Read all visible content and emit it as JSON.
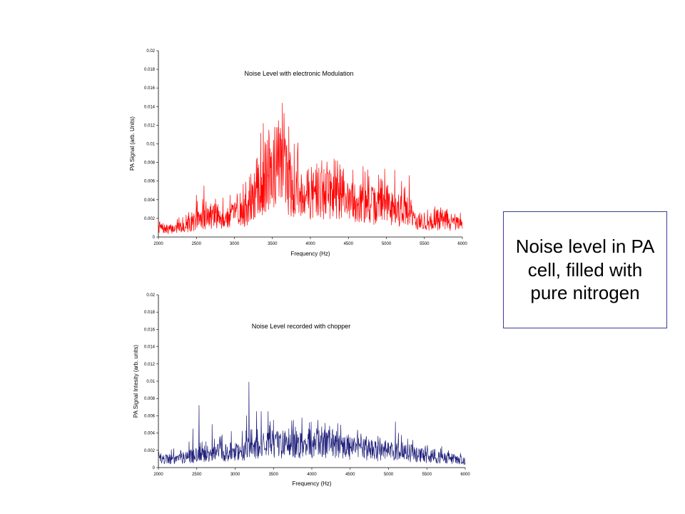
{
  "callout": {
    "text": "Noise level in PA cell, filled with pure nitrogen"
  },
  "chart_data": [
    {
      "type": "line",
      "title": "Noise Level with electronic Modulation",
      "xlabel": "Frequency (Hz)",
      "ylabel": "PA Signal (arb. Units)",
      "xlim": [
        2000,
        6000
      ],
      "ylim": [
        0,
        0.02
      ],
      "xticks": [
        "2000",
        "2500",
        "3000",
        "3500",
        "4000",
        "4500",
        "5000",
        "5500",
        "6000"
      ],
      "yticks": [
        "0",
        "0.002",
        "0.004",
        "0.006",
        "0.008",
        "0.01",
        "0.012",
        "0.014",
        "0.016",
        "0.018",
        "0.02"
      ],
      "color": "#ff0000",
      "grid": false,
      "series": [
        {
          "name": "",
          "x": [
            2000,
            2100,
            2200,
            2300,
            2400,
            2500,
            2600,
            2700,
            2800,
            2900,
            3000,
            3100,
            3200,
            3300,
            3350,
            3400,
            3450,
            3500,
            3550,
            3600,
            3650,
            3700,
            3800,
            3900,
            4000,
            4100,
            4150,
            4200,
            4300,
            4400,
            4500,
            4550,
            4600,
            4700,
            4800,
            4900,
            5000,
            5100,
            5200,
            5300,
            5400,
            5500,
            5600,
            5700,
            5800,
            5900,
            6000
          ],
          "y": [
            0.0012,
            0.0009,
            0.001,
            0.0012,
            0.0014,
            0.002,
            0.0023,
            0.0024,
            0.0025,
            0.0022,
            0.0026,
            0.003,
            0.0035,
            0.005,
            0.006,
            0.0065,
            0.0075,
            0.008,
            0.0085,
            0.0088,
            0.0078,
            0.007,
            0.0055,
            0.005,
            0.0052,
            0.0054,
            0.0056,
            0.005,
            0.0048,
            0.0046,
            0.004,
            0.0042,
            0.0044,
            0.004,
            0.0038,
            0.0036,
            0.004,
            0.0034,
            0.0032,
            0.003,
            0.002,
            0.0015,
            0.0018,
            0.0022,
            0.002,
            0.0015,
            0.0014
          ],
          "peaks_x": [
            2500,
            2600,
            2850,
            3300,
            3380,
            3530,
            3580,
            3610,
            3700,
            3920,
            4070,
            4150,
            4200,
            4560,
            4720,
            4770,
            5110,
            5200,
            5300,
            5800
          ],
          "peaks_y": [
            0.0045,
            0.0055,
            0.0042,
            0.0085,
            0.0122,
            0.0118,
            0.0125,
            0.0105,
            0.008,
            0.0055,
            0.0072,
            0.0082,
            0.0068,
            0.0072,
            0.007,
            0.0065,
            0.0072,
            0.006,
            0.0066,
            0.003
          ]
        }
      ]
    },
    {
      "type": "line",
      "title": "Noise Level recorded with chopper",
      "xlabel": "Frequency (Hz)",
      "ylabel": "PA Signal Intesity (arb. units)",
      "xlim": [
        2000,
        6000
      ],
      "ylim": [
        0,
        0.02
      ],
      "xticks": [
        "2000",
        "2500",
        "3000",
        "3500",
        "4000",
        "4500",
        "5000",
        "5500",
        "6000"
      ],
      "yticks": [
        "0",
        "0.002",
        "0.004",
        "0.006",
        "0.008",
        "0.01",
        "0.012",
        "0.014",
        "0.016",
        "0.018",
        "0.02"
      ],
      "color": "#1f1f7a",
      "grid": false,
      "series": [
        {
          "name": "",
          "x": [
            2000,
            2100,
            2200,
            2300,
            2400,
            2500,
            2600,
            2700,
            2800,
            2900,
            3000,
            3100,
            3200,
            3300,
            3400,
            3500,
            3600,
            3700,
            3800,
            3900,
            4000,
            4100,
            4200,
            4300,
            4400,
            4500,
            4600,
            4700,
            4800,
            4900,
            5000,
            5100,
            5200,
            5300,
            5400,
            5500,
            5600,
            5700,
            5800,
            5900,
            6000
          ],
          "y": [
            0.001,
            0.0011,
            0.0012,
            0.0013,
            0.0014,
            0.0016,
            0.0018,
            0.0018,
            0.0019,
            0.002,
            0.0021,
            0.0023,
            0.0025,
            0.0027,
            0.0028,
            0.003,
            0.003,
            0.0029,
            0.003,
            0.0031,
            0.003,
            0.003,
            0.0032,
            0.0028,
            0.0027,
            0.0026,
            0.0025,
            0.0024,
            0.0022,
            0.0021,
            0.0021,
            0.002,
            0.002,
            0.0018,
            0.0016,
            0.0015,
            0.0014,
            0.0013,
            0.0012,
            0.001,
            0.0009
          ],
          "peaks_x": [
            2200,
            2400,
            2450,
            2530,
            2620,
            2700,
            2830,
            2950,
            3150,
            3180,
            3280,
            3340,
            3430,
            3500,
            3640,
            3700,
            3800,
            3960,
            4080,
            4200,
            4320,
            4480,
            4600,
            4780,
            4950,
            5090,
            5130,
            5200
          ],
          "peaks_y": [
            0.0022,
            0.003,
            0.0045,
            0.0072,
            0.003,
            0.005,
            0.0038,
            0.0042,
            0.006,
            0.0099,
            0.0065,
            0.0065,
            0.0065,
            0.0055,
            0.004,
            0.0045,
            0.0042,
            0.0045,
            0.0055,
            0.004,
            0.0042,
            0.0038,
            0.0035,
            0.0032,
            0.003,
            0.0053,
            0.004,
            0.0025
          ]
        }
      ]
    }
  ]
}
